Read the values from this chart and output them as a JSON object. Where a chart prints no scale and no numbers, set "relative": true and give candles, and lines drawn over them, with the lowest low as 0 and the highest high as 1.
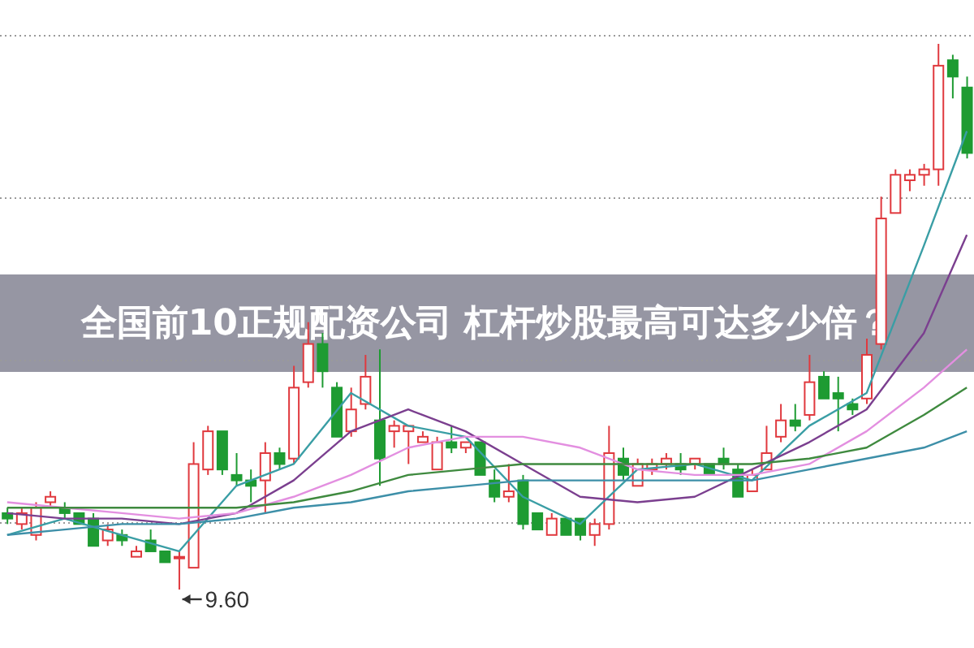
{
  "chart_data": {
    "type": "candlestick",
    "title": "全国前10正规配资公司 杠杆炒股最高可达多少倍？",
    "relative": true,
    "grid": "y",
    "categories": [
      null,
      null,
      null,
      null,
      null,
      null,
      null,
      null,
      null,
      null,
      null,
      null,
      null,
      null,
      null,
      null,
      null,
      null,
      null,
      null,
      null,
      null,
      null,
      null,
      null,
      null,
      null,
      null,
      null,
      null,
      null,
      null,
      null,
      null,
      null,
      null,
      null,
      null,
      null,
      null,
      null,
      null,
      null,
      null,
      null,
      null,
      null,
      null,
      null,
      null,
      null,
      null,
      null,
      null,
      null,
      null,
      null,
      null,
      null,
      null,
      null,
      null,
      null,
      null,
      null,
      null,
      null,
      null
    ],
    "ohlc": [
      [
        0.14,
        0.15,
        0.12,
        0.13
      ],
      [
        0.12,
        0.15,
        0.11,
        0.14
      ],
      [
        0.1,
        0.16,
        0.09,
        0.15
      ],
      [
        0.16,
        0.18,
        0.15,
        0.17
      ],
      [
        0.15,
        0.16,
        0.13,
        0.14
      ],
      [
        0.14,
        0.14,
        0.12,
        0.12
      ],
      [
        0.13,
        0.14,
        0.08,
        0.08
      ],
      [
        0.09,
        0.12,
        0.08,
        0.11
      ],
      [
        0.1,
        0.11,
        0.08,
        0.09
      ],
      [
        0.06,
        0.08,
        0.06,
        0.07
      ],
      [
        0.09,
        0.11,
        0.07,
        0.07
      ],
      [
        0.07,
        0.07,
        0.05,
        0.05
      ],
      [
        0.06,
        0.07,
        0,
        0.06
      ],
      [
        0.04,
        0.27,
        0.04,
        0.23
      ],
      [
        0.22,
        0.3,
        0.21,
        0.29
      ],
      [
        0.29,
        0.29,
        0.21,
        0.22
      ],
      [
        0.21,
        0.25,
        0.19,
        0.2
      ],
      [
        0.2,
        0.22,
        0.16,
        0.19
      ],
      [
        0.2,
        0.27,
        0.14,
        0.25
      ],
      [
        0.25,
        0.26,
        0.22,
        0.23
      ],
      [
        0.24,
        0.41,
        0.23,
        0.37
      ],
      [
        0.38,
        0.49,
        0.37,
        0.45
      ],
      [
        0.45,
        0.47,
        0.37,
        0.4
      ],
      [
        0.37,
        0.38,
        0.28,
        0.28
      ],
      [
        0.29,
        0.37,
        0.28,
        0.33
      ],
      [
        0.34,
        0.43,
        0.33,
        0.39
      ],
      [
        0.31,
        0.44,
        0.19,
        0.24
      ],
      [
        0.29,
        0.31,
        0.26,
        0.3
      ],
      [
        0.29,
        0.3,
        0.23,
        0.3
      ],
      [
        0.27,
        0.29,
        0.27,
        0.28
      ],
      [
        0.22,
        0.28,
        0.22,
        0.27
      ],
      [
        0.27,
        0.3,
        0.25,
        0.26
      ],
      [
        0.26,
        0.27,
        0.25,
        0.27
      ],
      [
        0.27,
        0.27,
        0.21,
        0.21
      ],
      [
        0.2,
        0.22,
        0.16,
        0.17
      ],
      [
        0.17,
        0.23,
        0.16,
        0.18
      ],
      [
        0.2,
        0.21,
        0.11,
        0.12
      ],
      [
        0.14,
        0.14,
        0.11,
        0.11
      ],
      [
        0.1,
        0.14,
        0.1,
        0.13
      ],
      [
        0.13,
        0.13,
        0.1,
        0.1
      ],
      [
        0.13,
        0.13,
        0.09,
        0.1
      ],
      [
        0.1,
        0.13,
        0.08,
        0.12
      ],
      [
        0.12,
        0.3,
        0.11,
        0.25
      ],
      [
        0.24,
        0.26,
        0.2,
        0.21
      ],
      [
        0.19,
        0.24,
        0.19,
        0.23
      ],
      [
        0.22,
        0.24,
        0.21,
        0.23
      ],
      [
        0.23,
        0.25,
        0.22,
        0.24
      ],
      [
        0.23,
        0.25,
        0.21,
        0.22
      ],
      [
        0.23,
        0.24,
        0.22,
        0.24
      ],
      [
        0.23,
        0.23,
        0.21,
        0.21
      ],
      [
        0.24,
        0.26,
        0.22,
        0.23
      ],
      [
        0.22,
        0.23,
        0.17,
        0.17
      ],
      [
        0.18,
        0.22,
        0.18,
        0.21
      ],
      [
        0.22,
        0.3,
        0.22,
        0.25
      ],
      [
        0.28,
        0.34,
        0.27,
        0.31
      ],
      [
        0.31,
        0.34,
        0.29,
        0.3
      ],
      [
        0.32,
        0.43,
        0.31,
        0.38
      ],
      [
        0.39,
        0.4,
        0.35,
        0.35
      ],
      [
        0.36,
        0.39,
        0.29,
        0.35
      ],
      [
        0.34,
        0.35,
        0.32,
        0.33
      ],
      [
        0.35,
        0.46,
        0.34,
        0.43
      ],
      [
        0.45,
        0.72,
        0.44,
        0.68
      ],
      [
        0.69,
        0.77,
        0.69,
        0.76
      ],
      [
        0.75,
        0.77,
        0.73,
        0.76
      ],
      [
        0.76,
        0.78,
        0.74,
        0.77
      ],
      [
        0.77,
        1,
        0.74,
        0.96
      ],
      [
        0.97,
        0.98,
        0.9,
        0.94
      ],
      [
        0.92,
        0.94,
        0.79,
        0.8
      ]
    ],
    "series": [
      {
        "type": "line",
        "color": "#3a9ea5",
        "values": [
          0.1,
          null,
          null,
          null,
          0.13,
          null,
          null,
          null,
          0.1,
          null,
          null,
          null,
          0.07,
          null,
          null,
          null,
          0.19,
          null,
          null,
          null,
          0.23,
          null,
          null,
          null,
          0.36,
          null,
          null,
          null,
          0.3,
          null,
          null,
          null,
          0.28,
          null,
          null,
          null,
          0.17,
          null,
          null,
          null,
          0.12,
          null,
          null,
          null,
          0.22,
          null,
          null,
          null,
          0.23,
          null,
          null,
          null,
          0.2,
          null,
          null,
          null,
          0.3,
          null,
          null,
          null,
          0.36,
          null,
          null,
          null,
          0.63,
          null,
          null,
          0.84
        ]
      },
      {
        "type": "line",
        "color": "#7b3f8f",
        "values": [
          0.14,
          null,
          null,
          null,
          0.13,
          null,
          null,
          null,
          0.13,
          null,
          null,
          null,
          0.12,
          null,
          null,
          null,
          0.14,
          null,
          null,
          null,
          0.2,
          null,
          null,
          null,
          0.29,
          null,
          null,
          null,
          0.33,
          null,
          null,
          null,
          0.29,
          null,
          null,
          null,
          0.23,
          null,
          null,
          null,
          0.17,
          null,
          null,
          null,
          0.16,
          null,
          null,
          null,
          0.17,
          null,
          null,
          null,
          0.22,
          null,
          null,
          null,
          0.27,
          null,
          null,
          null,
          0.33,
          null,
          null,
          null,
          0.47,
          null,
          null,
          0.65
        ]
      },
      {
        "type": "line",
        "color": "#e38fe0",
        "values": [
          0.16,
          null,
          null,
          null,
          0.15,
          null,
          null,
          null,
          0.14,
          null,
          null,
          null,
          0.13,
          null,
          null,
          null,
          0.14,
          null,
          null,
          null,
          0.17,
          null,
          null,
          null,
          0.21,
          null,
          null,
          null,
          0.26,
          null,
          null,
          null,
          0.28,
          null,
          null,
          null,
          0.28,
          null,
          null,
          null,
          0.26,
          null,
          null,
          null,
          0.22,
          null,
          null,
          null,
          0.21,
          null,
          null,
          null,
          0.21,
          null,
          null,
          null,
          0.23,
          null,
          null,
          null,
          0.29,
          null,
          null,
          null,
          0.37,
          null,
          null,
          0.44
        ]
      },
      {
        "type": "line",
        "color": "#3f8a3f",
        "values": [
          0.15,
          null,
          null,
          null,
          0.15,
          null,
          null,
          null,
          0.15,
          null,
          null,
          null,
          0.15,
          null,
          null,
          null,
          0.15,
          null,
          null,
          null,
          0.16,
          null,
          null,
          null,
          0.18,
          null,
          null,
          null,
          0.21,
          null,
          null,
          null,
          0.22,
          null,
          null,
          null,
          0.23,
          null,
          null,
          null,
          0.23,
          null,
          null,
          null,
          0.23,
          null,
          null,
          null,
          0.23,
          null,
          null,
          null,
          0.23,
          null,
          null,
          null,
          0.24,
          null,
          null,
          null,
          0.26,
          null,
          null,
          null,
          0.32,
          null,
          null,
          0.37
        ]
      },
      {
        "type": "line",
        "color": "#3d8fa8",
        "values": [
          0.1,
          null,
          null,
          null,
          0.11,
          null,
          null,
          null,
          0.12,
          null,
          null,
          null,
          0.12,
          null,
          null,
          null,
          0.13,
          null,
          null,
          null,
          0.15,
          null,
          null,
          null,
          0.16,
          null,
          null,
          null,
          0.18,
          null,
          null,
          null,
          0.19,
          null,
          null,
          null,
          0.2,
          null,
          null,
          null,
          0.2,
          null,
          null,
          null,
          0.2,
          null,
          null,
          null,
          0.2,
          null,
          null,
          null,
          0.2,
          null,
          null,
          null,
          0.22,
          null,
          null,
          null,
          0.24,
          null,
          null,
          null,
          0.26,
          null,
          null,
          0.29
        ]
      }
    ],
    "annotations": [
      "9.60"
    ]
  }
}
